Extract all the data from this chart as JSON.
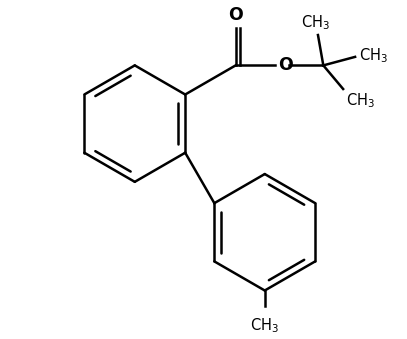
{
  "bg_color": "#ffffff",
  "line_color": "#000000",
  "line_width": 1.8,
  "font_size": 10.5,
  "figsize": [
    4.07,
    3.39
  ],
  "dpi": 100
}
